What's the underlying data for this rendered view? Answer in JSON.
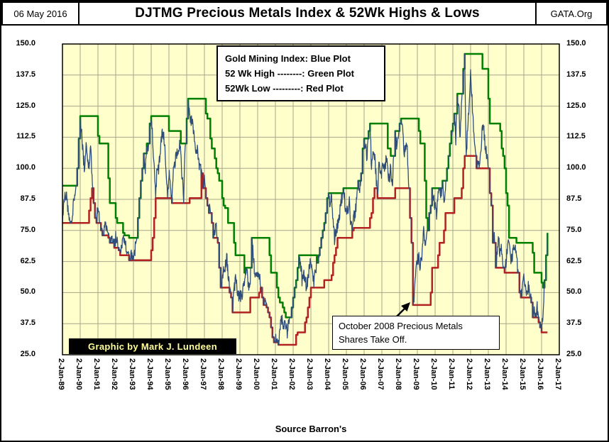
{
  "header": {
    "date": "06 May 2016",
    "title": "DJTMG Precious Metals Index & 52Wk Highs & Lows",
    "org": "GATA.Org"
  },
  "legend": {
    "lines": [
      "Gold Mining Index: Blue Plot",
      "52 Wk High --------: Green Plot",
      "52Wk Low ---------: Red Plot"
    ]
  },
  "annotation": {
    "lines": [
      "October 2008 Precious Metals",
      "Shares Take Off."
    ]
  },
  "credit": "Graphic by Mark J. Lundeen",
  "source": "Source Barron's",
  "chart_data": {
    "type": "line",
    "title": "DJTMG Precious Metals Index & 52Wk Highs & Lows",
    "ylim": [
      25,
      150
    ],
    "y_ticks": [
      150,
      137.5,
      125,
      112.5,
      100,
      87.5,
      75,
      62.5,
      50,
      37.5,
      25
    ],
    "x_tick_labels": [
      "2-Jan-89",
      "2-Jan-90",
      "2-Jan-91",
      "2-Jan-92",
      "2-Jan-93",
      "2-Jan-94",
      "2-Jan-95",
      "2-Jan-96",
      "2-Jan-97",
      "2-Jan-98",
      "2-Jan-99",
      "2-Jan-00",
      "2-Jan-01",
      "2-Jan-02",
      "2-Jan-03",
      "2-Jan-04",
      "2-Jan-05",
      "2-Jan-06",
      "2-Jan-07",
      "2-Jan-08",
      "2-Jan-09",
      "2-Jan-10",
      "2-Jan-11",
      "2-Jan-12",
      "2-Jan-13",
      "2-Jan-14",
      "2-Jan-15",
      "2-Jan-16",
      "2-Jan-17"
    ],
    "grid": true,
    "plot_bg": "#FFFFCC",
    "grid_color": "#a6a68a",
    "legend_position": "top-center",
    "series": [
      {
        "name": "Gold Mining Index",
        "color": "#2e4d7b"
      },
      {
        "name": "52 Wk High",
        "color": "#008000",
        "derived": "trailing 52-week max of index"
      },
      {
        "name": "52Wk Low",
        "color": "#b22222",
        "derived": "trailing 52-week min of index"
      }
    ],
    "index_start": "1989-01",
    "index_resolution": "monthly (approximate values read from plot)",
    "seed_high": 93,
    "seed_low": 78,
    "index_values": [
      80,
      85,
      90,
      87,
      82,
      79,
      78,
      83,
      88,
      92,
      100,
      112,
      121,
      113,
      105,
      100,
      108,
      103,
      99,
      110,
      96,
      86,
      80,
      78,
      86,
      80,
      75,
      73,
      74,
      78,
      74,
      72,
      70,
      73,
      70,
      68,
      72,
      70,
      67,
      65,
      68,
      70,
      72,
      68,
      65,
      63,
      64,
      66,
      63,
      67,
      72,
      80,
      88,
      95,
      100,
      106,
      98,
      110,
      108,
      118,
      121,
      112,
      100,
      88,
      102,
      100,
      105,
      112,
      115,
      110,
      100,
      88,
      98,
      95,
      86,
      100,
      102,
      105,
      108,
      110,
      105,
      96,
      88,
      110,
      120,
      128,
      122,
      118,
      120,
      112,
      105,
      108,
      104,
      100,
      98,
      92,
      95,
      88,
      85,
      82,
      84,
      78,
      72,
      75,
      78,
      70,
      60,
      52,
      55,
      58,
      60,
      65,
      58,
      50,
      48,
      42,
      52,
      55,
      52,
      48,
      50,
      48,
      50,
      55,
      60,
      58,
      52,
      55,
      72,
      65,
      58,
      56,
      55,
      58,
      52,
      48,
      45,
      46,
      44,
      42,
      40,
      36,
      32,
      30,
      32,
      30,
      29,
      33,
      40,
      38,
      36,
      38,
      34,
      38,
      40,
      44,
      48,
      52,
      55,
      60,
      65,
      62,
      55,
      58,
      56,
      52,
      56,
      60,
      62,
      58,
      55,
      57,
      62,
      65,
      68,
      72,
      75,
      78,
      82,
      88,
      90,
      85,
      88,
      78,
      72,
      75,
      77,
      80,
      85,
      88,
      92,
      86,
      82,
      84,
      86,
      78,
      76,
      80,
      82,
      88,
      95,
      92,
      98,
      108,
      112,
      108,
      105,
      115,
      118,
      100,
      108,
      105,
      98,
      88,
      102,
      100,
      98,
      102,
      98,
      105,
      100,
      95,
      102,
      92,
      105,
      115,
      110,
      112,
      118,
      120,
      115,
      105,
      108,
      110,
      95,
      80,
      70,
      45,
      50,
      60,
      62,
      65,
      60,
      65,
      75,
      72,
      70,
      75,
      82,
      85,
      92,
      88,
      85,
      82,
      88,
      92,
      90,
      95,
      88,
      92,
      100,
      105,
      110,
      115,
      118,
      122,
      112,
      130,
      125,
      112,
      128,
      140,
      146,
      105,
      115,
      125,
      140,
      128,
      115,
      110,
      100,
      105,
      102,
      108,
      118,
      115,
      108,
      105,
      100,
      90,
      85,
      70,
      72,
      60,
      65,
      72,
      65,
      68,
      60,
      58,
      62,
      70,
      68,
      65,
      62,
      68,
      70,
      66,
      58,
      50,
      48,
      52,
      58,
      54,
      50,
      52,
      50,
      46,
      40,
      42,
      40,
      44,
      38,
      36,
      34,
      42,
      55,
      65,
      74
    ]
  }
}
